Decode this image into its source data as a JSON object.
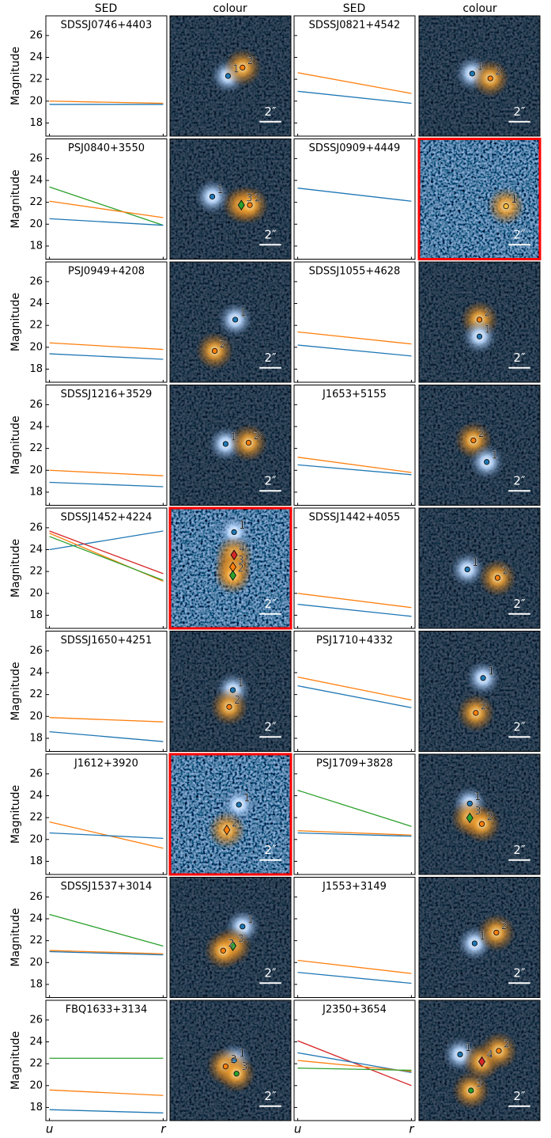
{
  "headers": [
    "SED",
    "colour",
    "SED",
    "colour"
  ],
  "chart_data": [
    {
      "type": "line",
      "title": "SDSSJ0746+4403",
      "ylabel": "Magnitude",
      "ytick_labels": true,
      "xtick_labels": false,
      "categories": [
        "u",
        "r"
      ],
      "ylim": [
        16.8,
        27.8
      ],
      "yticks": [
        18,
        20,
        22,
        24,
        26
      ],
      "series": [
        {
          "color": "#ff7f0e",
          "values": [
            20.0,
            19.8
          ]
        },
        {
          "color": "#1f77b4",
          "values": [
            19.7,
            19.7
          ]
        }
      ]
    },
    {
      "type": "line",
      "title": "SDSSJ0821+4542",
      "ytick_labels": false,
      "xtick_labels": false,
      "categories": [
        "u",
        "r"
      ],
      "ylim": [
        16.8,
        27.8
      ],
      "yticks": [
        18,
        20,
        22,
        24,
        26
      ],
      "series": [
        {
          "color": "#ff7f0e",
          "values": [
            22.6,
            20.7
          ]
        },
        {
          "color": "#1f77b4",
          "values": [
            20.9,
            19.8
          ]
        }
      ]
    },
    {
      "type": "line",
      "title": "PSJ0840+3550",
      "ylabel": "Magnitude",
      "ytick_labels": true,
      "xtick_labels": false,
      "categories": [
        "u",
        "r"
      ],
      "ylim": [
        16.8,
        27.8
      ],
      "yticks": [
        18,
        20,
        22,
        24,
        26
      ],
      "series": [
        {
          "color": "#2ca02c",
          "values": [
            23.4,
            19.9
          ]
        },
        {
          "color": "#ff7f0e",
          "values": [
            22.1,
            20.6
          ]
        },
        {
          "color": "#1f77b4",
          "values": [
            20.5,
            19.9
          ]
        }
      ]
    },
    {
      "type": "line",
      "title": "SDSSJ0909+4449",
      "ytick_labels": false,
      "xtick_labels": false,
      "categories": [
        "u",
        "r"
      ],
      "ylim": [
        16.8,
        27.8
      ],
      "yticks": [
        18,
        20,
        22,
        24,
        26
      ],
      "series": [
        {
          "color": "#1f77b4",
          "values": [
            23.3,
            22.1
          ]
        }
      ]
    },
    {
      "type": "line",
      "title": "PSJ0949+4208",
      "ylabel": "Magnitude",
      "ytick_labels": true,
      "xtick_labels": false,
      "categories": [
        "u",
        "r"
      ],
      "ylim": [
        16.8,
        27.8
      ],
      "yticks": [
        18,
        20,
        22,
        24,
        26
      ],
      "series": [
        {
          "color": "#ff7f0e",
          "values": [
            20.4,
            19.8
          ]
        },
        {
          "color": "#1f77b4",
          "values": [
            19.4,
            18.9
          ]
        }
      ]
    },
    {
      "type": "line",
      "title": "SDSSJ1055+4628",
      "ytick_labels": false,
      "xtick_labels": false,
      "categories": [
        "u",
        "r"
      ],
      "ylim": [
        16.8,
        27.8
      ],
      "yticks": [
        18,
        20,
        22,
        24,
        26
      ],
      "series": [
        {
          "color": "#ff7f0e",
          "values": [
            21.4,
            20.3
          ]
        },
        {
          "color": "#1f77b4",
          "values": [
            20.2,
            19.2
          ]
        }
      ]
    },
    {
      "type": "line",
      "title": "SDSSJ1216+3529",
      "ylabel": "Magnitude",
      "ytick_labels": true,
      "xtick_labels": false,
      "categories": [
        "u",
        "r"
      ],
      "ylim": [
        16.8,
        27.8
      ],
      "yticks": [
        18,
        20,
        22,
        24,
        26
      ],
      "series": [
        {
          "color": "#ff7f0e",
          "values": [
            20.0,
            19.5
          ]
        },
        {
          "color": "#1f77b4",
          "values": [
            18.9,
            18.5
          ]
        }
      ]
    },
    {
      "type": "line",
      "title": "J1653+5155",
      "ytick_labels": false,
      "xtick_labels": false,
      "categories": [
        "u",
        "r"
      ],
      "ylim": [
        16.8,
        27.8
      ],
      "yticks": [
        18,
        20,
        22,
        24,
        26
      ],
      "series": [
        {
          "color": "#ff7f0e",
          "values": [
            21.2,
            19.8
          ]
        },
        {
          "color": "#1f77b4",
          "values": [
            20.5,
            19.6
          ]
        }
      ]
    },
    {
      "type": "line",
      "title": "SDSSJ1452+4224",
      "ylabel": "Magnitude",
      "ytick_labels": true,
      "xtick_labels": false,
      "categories": [
        "u",
        "r"
      ],
      "ylim": [
        16.8,
        27.8
      ],
      "yticks": [
        18,
        20,
        22,
        24,
        26
      ],
      "series": [
        {
          "color": "#1f77b4",
          "values": [
            24.0,
            25.7
          ]
        },
        {
          "color": "#d62728",
          "values": [
            25.7,
            21.8
          ]
        },
        {
          "color": "#ff7f0e",
          "values": [
            25.5,
            21.1
          ]
        },
        {
          "color": "#2ca02c",
          "values": [
            25.2,
            21.2
          ]
        }
      ]
    },
    {
      "type": "line",
      "title": "SDSSJ1442+4055",
      "ytick_labels": false,
      "xtick_labels": false,
      "categories": [
        "u",
        "r"
      ],
      "ylim": [
        16.8,
        27.8
      ],
      "yticks": [
        18,
        20,
        22,
        24,
        26
      ],
      "series": [
        {
          "color": "#ff7f0e",
          "values": [
            20.0,
            18.7
          ]
        },
        {
          "color": "#1f77b4",
          "values": [
            19.0,
            17.9
          ]
        }
      ]
    },
    {
      "type": "line",
      "title": "SDSSJ1650+4251",
      "ylabel": "Magnitude",
      "ytick_labels": true,
      "xtick_labels": false,
      "categories": [
        "u",
        "r"
      ],
      "ylim": [
        16.8,
        27.8
      ],
      "yticks": [
        18,
        20,
        22,
        24,
        26
      ],
      "series": [
        {
          "color": "#ff7f0e",
          "values": [
            19.9,
            19.5
          ]
        },
        {
          "color": "#1f77b4",
          "values": [
            18.6,
            17.7
          ]
        }
      ]
    },
    {
      "type": "line",
      "title": "PSJ1710+4332",
      "ytick_labels": false,
      "xtick_labels": false,
      "categories": [
        "u",
        "r"
      ],
      "ylim": [
        16.8,
        27.8
      ],
      "yticks": [
        18,
        20,
        22,
        24,
        26
      ],
      "series": [
        {
          "color": "#ff7f0e",
          "values": [
            23.6,
            21.5
          ]
        },
        {
          "color": "#1f77b4",
          "values": [
            22.8,
            20.8
          ]
        }
      ]
    },
    {
      "type": "line",
      "title": "J1612+3920",
      "ylabel": "Magnitude",
      "ytick_labels": true,
      "xtick_labels": false,
      "categories": [
        "u",
        "r"
      ],
      "ylim": [
        16.8,
        27.8
      ],
      "yticks": [
        18,
        20,
        22,
        24,
        26
      ],
      "series": [
        {
          "color": "#ff7f0e",
          "values": [
            21.6,
            19.2
          ]
        },
        {
          "color": "#1f77b4",
          "values": [
            20.6,
            20.1
          ]
        }
      ]
    },
    {
      "type": "line",
      "title": "PSJ1709+3828",
      "ytick_labels": false,
      "xtick_labels": false,
      "categories": [
        "u",
        "r"
      ],
      "ylim": [
        16.8,
        27.8
      ],
      "yticks": [
        18,
        20,
        22,
        24,
        26
      ],
      "series": [
        {
          "color": "#2ca02c",
          "values": [
            24.5,
            21.2
          ]
        },
        {
          "color": "#ff7f0e",
          "values": [
            20.8,
            20.4
          ]
        },
        {
          "color": "#1f77b4",
          "values": [
            20.6,
            20.3
          ]
        }
      ]
    },
    {
      "type": "line",
      "title": "SDSSJ1537+3014",
      "ylabel": "Magnitude",
      "ytick_labels": true,
      "xtick_labels": false,
      "categories": [
        "u",
        "r"
      ],
      "ylim": [
        16.8,
        27.8
      ],
      "yticks": [
        18,
        20,
        22,
        24,
        26
      ],
      "series": [
        {
          "color": "#2ca02c",
          "values": [
            24.4,
            21.5
          ]
        },
        {
          "color": "#ff7f0e",
          "values": [
            21.1,
            20.8
          ]
        },
        {
          "color": "#1f77b4",
          "values": [
            21.0,
            20.7
          ]
        }
      ]
    },
    {
      "type": "line",
      "title": "J1553+3149",
      "ytick_labels": false,
      "xtick_labels": false,
      "categories": [
        "u",
        "r"
      ],
      "ylim": [
        16.8,
        27.8
      ],
      "yticks": [
        18,
        20,
        22,
        24,
        26
      ],
      "series": [
        {
          "color": "#ff7f0e",
          "values": [
            20.2,
            19.0
          ]
        },
        {
          "color": "#1f77b4",
          "values": [
            19.1,
            18.1
          ]
        }
      ]
    },
    {
      "type": "line",
      "title": "FBQ1633+3134",
      "ylabel": "Magnitude",
      "ytick_labels": true,
      "xtick_labels": true,
      "categories": [
        "u",
        "r"
      ],
      "ylim": [
        16.8,
        27.8
      ],
      "yticks": [
        18,
        20,
        22,
        24,
        26
      ],
      "series": [
        {
          "color": "#2ca02c",
          "values": [
            22.5,
            22.5
          ]
        },
        {
          "color": "#ff7f0e",
          "values": [
            19.6,
            19.1
          ]
        },
        {
          "color": "#1f77b4",
          "values": [
            17.8,
            17.5
          ]
        }
      ]
    },
    {
      "type": "line",
      "title": "J2350+3654",
      "ytick_labels": false,
      "xtick_labels": true,
      "categories": [
        "u",
        "r"
      ],
      "ylim": [
        16.8,
        27.8
      ],
      "yticks": [
        18,
        20,
        22,
        24,
        26
      ],
      "series": [
        {
          "color": "#d62728",
          "values": [
            24.1,
            20.0
          ]
        },
        {
          "color": "#1f77b4",
          "values": [
            23.0,
            21.2
          ]
        },
        {
          "color": "#ff7f0e",
          "values": [
            22.3,
            21.3
          ]
        },
        {
          "color": "#2ca02c",
          "values": [
            21.6,
            21.4
          ]
        }
      ]
    }
  ],
  "images": [
    {
      "highlight": false,
      "scale_label": "2″",
      "sources": [
        {
          "label": "1",
          "color": "#1f77b4",
          "shape": "circle"
        },
        {
          "label": "2",
          "color": "#ff7f0e",
          "shape": "circle"
        }
      ]
    },
    {
      "highlight": false,
      "scale_label": "2″",
      "sources": [
        {
          "label": "1",
          "color": "#1f77b4",
          "shape": "circle"
        },
        {
          "label": "2",
          "color": "#ff7f0e",
          "shape": "circle"
        }
      ]
    },
    {
      "highlight": false,
      "scale_label": "2″",
      "sources": [
        {
          "label": "1",
          "color": "#1f77b4",
          "shape": "circle"
        },
        {
          "label": "3",
          "color": "#2ca02c",
          "shape": "diamond"
        },
        {
          "label": "2",
          "color": "#ff7f0e",
          "shape": "circle"
        }
      ]
    },
    {
      "highlight": true,
      "scale_label": "2″",
      "sources": [
        {
          "label": "1",
          "color": "#ffbf3f",
          "shape": "circle"
        }
      ]
    },
    {
      "highlight": false,
      "scale_label": "2″",
      "sources": [
        {
          "label": "1",
          "color": "#1f77b4",
          "shape": "circle"
        },
        {
          "label": "2",
          "color": "#ff7f0e",
          "shape": "circle"
        }
      ]
    },
    {
      "highlight": false,
      "scale_label": "2″",
      "sources": [
        {
          "label": "2",
          "color": "#ff7f0e",
          "shape": "circle"
        },
        {
          "label": "1",
          "color": "#1f77b4",
          "shape": "circle"
        }
      ]
    },
    {
      "highlight": false,
      "scale_label": "2″",
      "sources": [
        {
          "label": "1",
          "color": "#1f77b4",
          "shape": "circle"
        },
        {
          "label": "2",
          "color": "#ff7f0e",
          "shape": "circle"
        }
      ]
    },
    {
      "highlight": false,
      "scale_label": "2″",
      "sources": [
        {
          "label": "2",
          "color": "#ff7f0e",
          "shape": "circle"
        },
        {
          "label": "1",
          "color": "#1f77b4",
          "shape": "circle"
        }
      ]
    },
    {
      "highlight": true,
      "scale_label": "2″",
      "sources": [
        {
          "label": "1",
          "color": "#1f77b4",
          "shape": "circle"
        },
        {
          "label": "4",
          "color": "#d62728",
          "shape": "diamond"
        },
        {
          "label": "3",
          "color": "#ff7f0e",
          "shape": "diamond"
        },
        {
          "label": "2",
          "color": "#2ca02c",
          "shape": "diamond"
        }
      ]
    },
    {
      "highlight": false,
      "scale_label": "2″",
      "sources": [
        {
          "label": "1",
          "color": "#1f77b4",
          "shape": "circle"
        },
        {
          "label": "2",
          "color": "#ff7f0e",
          "shape": "circle"
        }
      ]
    },
    {
      "highlight": false,
      "scale_label": "2″",
      "sources": [
        {
          "label": "1",
          "color": "#1f77b4",
          "shape": "circle"
        },
        {
          "label": "2",
          "color": "#ff7f0e",
          "shape": "circle"
        }
      ]
    },
    {
      "highlight": false,
      "scale_label": "2″",
      "sources": [
        {
          "label": "1",
          "color": "#1f77b4",
          "shape": "circle"
        },
        {
          "label": "2",
          "color": "#ff7f0e",
          "shape": "circle"
        }
      ]
    },
    {
      "highlight": true,
      "scale_label": "2″",
      "sources": [
        {
          "label": "1",
          "color": "#1f77b4",
          "shape": "circle"
        },
        {
          "label": "2",
          "color": "#ff7f0e",
          "shape": "diamond"
        }
      ]
    },
    {
      "highlight": false,
      "scale_label": "2″",
      "sources": [
        {
          "label": "1",
          "color": "#1f77b4",
          "shape": "circle"
        },
        {
          "label": "3",
          "color": "#2ca02c",
          "shape": "diamond"
        },
        {
          "label": "2",
          "color": "#ff7f0e",
          "shape": "circle"
        }
      ]
    },
    {
      "highlight": false,
      "scale_label": "2″",
      "sources": [
        {
          "label": "1",
          "color": "#1f77b4",
          "shape": "circle"
        },
        {
          "label": "3",
          "color": "#2ca02c",
          "shape": "diamond"
        },
        {
          "label": "2",
          "color": "#ff7f0e",
          "shape": "circle"
        }
      ]
    },
    {
      "highlight": false,
      "scale_label": "2″",
      "sources": [
        {
          "label": "1",
          "color": "#1f77b4",
          "shape": "circle"
        },
        {
          "label": "2",
          "color": "#ff7f0e",
          "shape": "circle"
        }
      ]
    },
    {
      "highlight": false,
      "scale_label": "2″",
      "sources": [
        {
          "label": "1",
          "color": "#1f77b4",
          "shape": "circle"
        },
        {
          "label": "2",
          "color": "#ff7f0e",
          "shape": "circle"
        },
        {
          "label": "3",
          "color": "#2ca02c",
          "shape": "circle"
        }
      ]
    },
    {
      "highlight": false,
      "scale_label": "2″",
      "sources": [
        {
          "label": "1",
          "color": "#1f77b4",
          "shape": "circle"
        },
        {
          "label": "4",
          "color": "#d62728",
          "shape": "diamond"
        },
        {
          "label": "2",
          "color": "#ff7f0e",
          "shape": "circle"
        },
        {
          "label": "3",
          "color": "#2ca02c",
          "shape": "circle"
        }
      ]
    }
  ]
}
